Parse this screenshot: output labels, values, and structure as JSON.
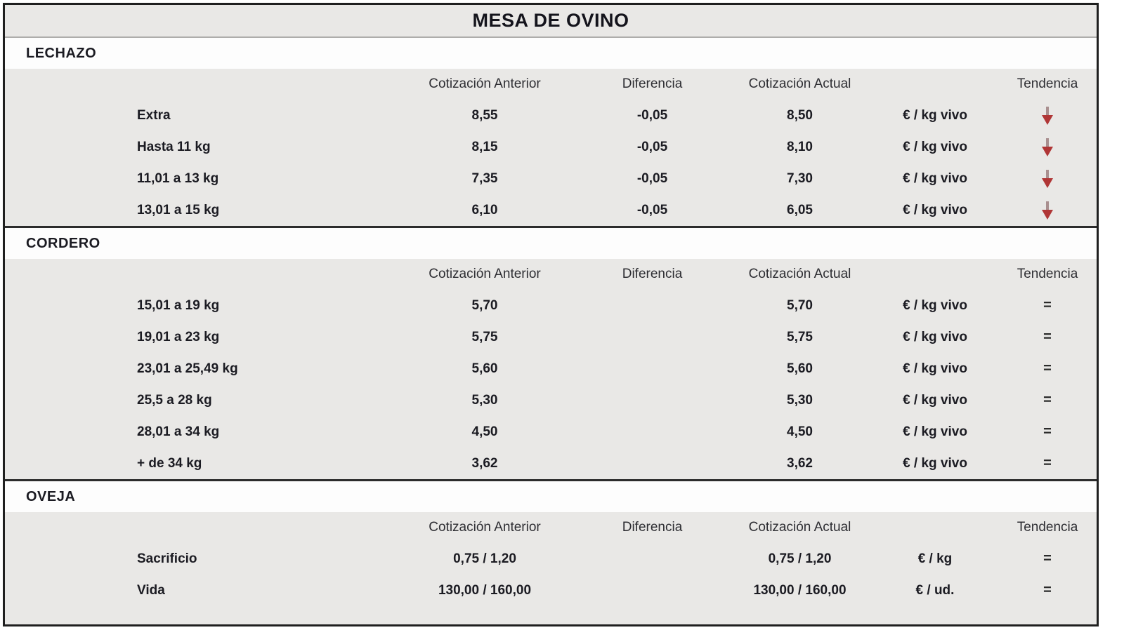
{
  "colors": {
    "trend_down_shaft": "#a98f8f",
    "trend_down_head": "#b03636",
    "trend_equal_text": "#2b2b2b",
    "band_gray": "#e9e8e6",
    "band_white": "#fdfdfd",
    "border_dark": "#1f1f1f"
  },
  "chart_data": {
    "type": "table",
    "title": "MESA DE OVINO",
    "column_headers": {
      "anterior": "Cotización Anterior",
      "diferencia": "Diferencia",
      "actual": "Cotización Actual",
      "tendencia": "Tendencia"
    },
    "trend_glyphs": {
      "down": "↓",
      "equal": "="
    },
    "sections": [
      {
        "name": "LECHAZO",
        "rows": [
          {
            "label": "Extra",
            "anterior": "8,55",
            "diferencia": "-0,05",
            "actual": "8,50",
            "unit": "€ / kg vivo",
            "trend": "down"
          },
          {
            "label": "Hasta 11 kg",
            "anterior": "8,15",
            "diferencia": "-0,05",
            "actual": "8,10",
            "unit": "€ / kg vivo",
            "trend": "down"
          },
          {
            "label": "11,01 a 13 kg",
            "anterior": "7,35",
            "diferencia": "-0,05",
            "actual": "7,30",
            "unit": "€ / kg vivo",
            "trend": "down"
          },
          {
            "label": "13,01 a 15 kg",
            "anterior": "6,10",
            "diferencia": "-0,05",
            "actual": "6,05",
            "unit": "€ / kg vivo",
            "trend": "down"
          }
        ]
      },
      {
        "name": "CORDERO",
        "rows": [
          {
            "label": "15,01 a 19 kg",
            "anterior": "5,70",
            "diferencia": "",
            "actual": "5,70",
            "unit": "€ / kg vivo",
            "trend": "equal"
          },
          {
            "label": "19,01 a 23 kg",
            "anterior": "5,75",
            "diferencia": "",
            "actual": "5,75",
            "unit": "€ / kg vivo",
            "trend": "equal"
          },
          {
            "label": "23,01 a 25,49 kg",
            "anterior": "5,60",
            "diferencia": "",
            "actual": "5,60",
            "unit": "€ / kg vivo",
            "trend": "equal"
          },
          {
            "label": "25,5 a 28 kg",
            "anterior": "5,30",
            "diferencia": "",
            "actual": "5,30",
            "unit": "€ / kg vivo",
            "trend": "equal"
          },
          {
            "label": "28,01 a 34 kg",
            "anterior": "4,50",
            "diferencia": "",
            "actual": "4,50",
            "unit": "€ / kg vivo",
            "trend": "equal"
          },
          {
            "label": "+ de 34 kg",
            "anterior": "3,62",
            "diferencia": "",
            "actual": "3,62",
            "unit": "€ / kg vivo",
            "trend": "equal"
          }
        ]
      },
      {
        "name": "OVEJA",
        "rows": [
          {
            "label": "Sacrificio",
            "anterior": "0,75 / 1,20",
            "diferencia": "",
            "actual": "0,75 / 1,20",
            "unit": "€ / kg",
            "trend": "equal"
          },
          {
            "label": "Vida",
            "anterior": "130,00 / 160,00",
            "diferencia": "",
            "actual": "130,00 / 160,00",
            "unit": "€ / ud.",
            "trend": "equal"
          }
        ]
      }
    ]
  }
}
